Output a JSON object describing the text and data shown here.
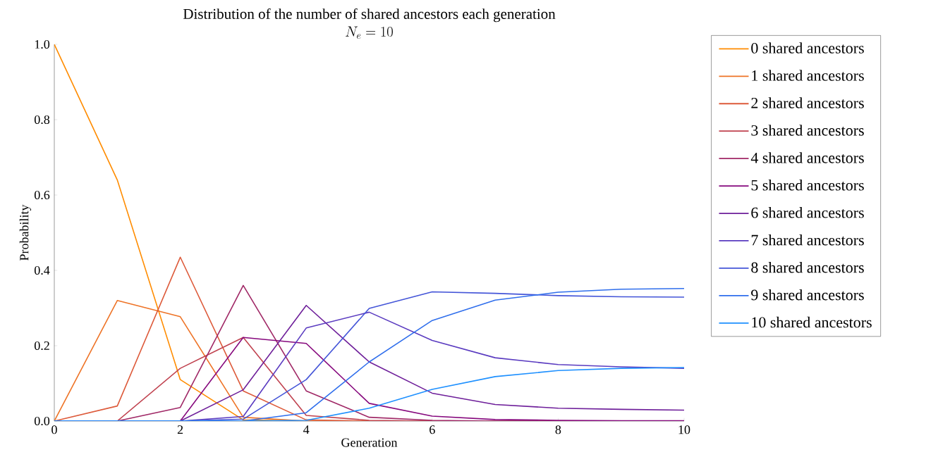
{
  "chart_data": {
    "type": "line",
    "title": "Distribution of the number of shared ancestors each generation",
    "subtitle": "N_e = 10",
    "xlabel": "Generation",
    "ylabel": "Probability",
    "x": [
      0,
      1,
      2,
      3,
      4,
      5,
      6,
      7,
      8,
      9,
      10
    ],
    "series": [
      {
        "name": "0 shared ancestors",
        "color": "#ff8c00",
        "values": [
          1.0,
          0.64,
          0.11,
          0.003,
          0,
          null,
          null,
          null,
          null,
          null,
          null
        ]
      },
      {
        "name": "1 shared ancestors",
        "color": "#ee7326",
        "values": [
          0,
          0.32,
          0.277,
          0.01,
          0,
          0,
          0,
          null,
          null,
          null,
          null
        ]
      },
      {
        "name": "2 shared ancestors",
        "color": "#dd5a3a",
        "values": [
          0,
          0.04,
          0.435,
          0.08,
          0.003,
          0,
          0,
          0,
          null,
          null,
          null
        ]
      },
      {
        "name": "3 shared ancestors",
        "color": "#c0424f",
        "values": [
          0,
          0,
          0.14,
          0.222,
          0.015,
          0.002,
          0,
          0,
          0,
          0,
          0
        ]
      },
      {
        "name": "4 shared ancestors",
        "color": "#a02866",
        "values": [
          0,
          0,
          0.036,
          0.36,
          0.08,
          0.01,
          0.002,
          0,
          0,
          0,
          0
        ]
      },
      {
        "name": "5 shared ancestors",
        "color": "#86087d",
        "values": [
          0,
          0,
          0,
          0.222,
          0.206,
          0.047,
          0.013,
          0.004,
          0.002,
          0.001,
          0.001
        ]
      },
      {
        "name": "6 shared ancestors",
        "color": "#6e1f9a",
        "values": [
          0,
          0,
          0,
          0.083,
          0.307,
          0.157,
          0.074,
          0.044,
          0.034,
          0.031,
          0.029
        ]
      },
      {
        "name": "7 shared ancestors",
        "color": "#5a3bc0",
        "values": [
          0,
          0,
          0,
          0.012,
          0.247,
          0.289,
          0.214,
          0.168,
          0.15,
          0.144,
          0.14
        ]
      },
      {
        "name": "8 shared ancestors",
        "color": "#4455d8",
        "values": [
          0,
          0,
          0,
          0.005,
          0.11,
          0.299,
          0.343,
          0.339,
          0.333,
          0.33,
          0.329
        ]
      },
      {
        "name": "9 shared ancestors",
        "color": "#2f6eec",
        "values": [
          0,
          0,
          0,
          0,
          0.022,
          0.157,
          0.267,
          0.321,
          0.342,
          0.35,
          0.352
        ]
      },
      {
        "name": "10 shared ancestors",
        "color": "#1e90ff",
        "values": [
          0,
          0,
          0,
          0,
          0.002,
          0.034,
          0.084,
          0.118,
          0.134,
          0.14,
          0.142
        ]
      }
    ],
    "xlim": [
      0,
      10
    ],
    "xticks": [
      0,
      2,
      4,
      6,
      8,
      10
    ],
    "ylim": [
      0,
      1.0
    ],
    "yticks": [
      {
        "value": 0,
        "label": "0.0"
      },
      {
        "value": 0.2,
        "label": "0.2"
      },
      {
        "value": 0.4,
        "label": "0.4"
      },
      {
        "value": 0.6,
        "label": "0.6"
      },
      {
        "value": 0.8,
        "label": "0.8"
      },
      {
        "value": 1.0,
        "label": "1.0"
      }
    ],
    "grid": false,
    "legend": "right",
    "marker": "none",
    "line_style": "solid"
  }
}
